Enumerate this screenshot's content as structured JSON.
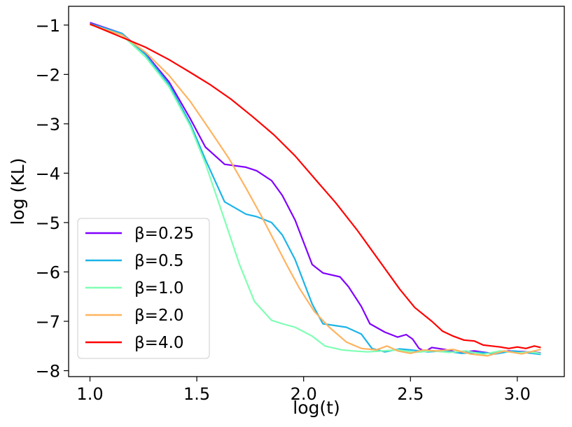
{
  "chart_data": {
    "type": "line",
    "title": "",
    "xlabel": "log(t)",
    "ylabel": "log (KL)",
    "xlim": [
      0.9,
      3.22
    ],
    "ylim": [
      -8.12,
      -0.62
    ],
    "xticks": [
      1.0,
      1.5,
      2.0,
      2.5,
      3.0
    ],
    "xtick_labels": [
      "1.0",
      "1.5",
      "2.0",
      "2.5",
      "3.0"
    ],
    "yticks": [
      -1,
      -2,
      -3,
      -4,
      -5,
      -6,
      -7,
      -8
    ],
    "ytick_labels": [
      "−1",
      "−2",
      "−3",
      "−4",
      "−5",
      "−6",
      "−7",
      "−8"
    ],
    "legend_position": "lower-left",
    "grid": false,
    "series": [
      {
        "name": "β=0.25",
        "color": "#8000ff",
        "x": [
          1.0,
          1.15,
          1.26,
          1.37,
          1.47,
          1.54,
          1.63,
          1.73,
          1.78,
          1.85,
          1.9,
          1.96,
          2.04,
          2.09,
          2.17,
          2.21,
          2.27,
          2.31,
          2.38,
          2.44,
          2.48,
          2.51,
          2.54,
          2.57,
          2.6,
          2.66,
          2.72,
          2.8,
          2.88,
          2.96,
          3.05,
          3.11
        ],
        "values": [
          -0.95,
          -1.17,
          -1.58,
          -2.15,
          -2.9,
          -3.47,
          -3.82,
          -3.88,
          -3.95,
          -4.15,
          -4.45,
          -4.95,
          -5.85,
          -6.02,
          -6.1,
          -6.3,
          -6.7,
          -7.05,
          -7.22,
          -7.32,
          -7.27,
          -7.36,
          -7.55,
          -7.61,
          -7.53,
          -7.57,
          -7.63,
          -7.6,
          -7.65,
          -7.6,
          -7.62,
          -7.64
        ]
      },
      {
        "name": "β=0.5",
        "color": "#1cb4e8",
        "x": [
          1.0,
          1.15,
          1.26,
          1.37,
          1.47,
          1.54,
          1.63,
          1.73,
          1.78,
          1.85,
          1.9,
          1.96,
          2.04,
          2.09,
          2.2,
          2.27,
          2.32,
          2.38,
          2.45,
          2.5,
          2.58,
          2.66,
          2.74,
          2.82,
          2.9,
          2.98,
          3.05,
          3.11
        ],
        "values": [
          -0.97,
          -1.17,
          -1.6,
          -2.2,
          -3.0,
          -3.72,
          -4.58,
          -4.83,
          -4.88,
          -5.0,
          -5.25,
          -5.75,
          -6.65,
          -7.05,
          -7.12,
          -7.26,
          -7.55,
          -7.62,
          -7.56,
          -7.58,
          -7.62,
          -7.6,
          -7.65,
          -7.63,
          -7.66,
          -7.6,
          -7.64,
          -7.67
        ]
      },
      {
        "name": "β=1.0",
        "color": "#80ffb4",
        "x": [
          1.0,
          1.15,
          1.26,
          1.37,
          1.47,
          1.54,
          1.63,
          1.7,
          1.77,
          1.85,
          1.9,
          1.96,
          2.04,
          2.1,
          2.18,
          2.23,
          2.3,
          2.37,
          2.44,
          2.52,
          2.6,
          2.68,
          2.76,
          2.84,
          2.92,
          3.0,
          3.05,
          3.11
        ],
        "values": [
          -0.99,
          -1.2,
          -1.65,
          -2.25,
          -3.05,
          -3.8,
          -4.95,
          -5.85,
          -6.6,
          -6.98,
          -7.05,
          -7.12,
          -7.3,
          -7.5,
          -7.58,
          -7.6,
          -7.62,
          -7.6,
          -7.58,
          -7.63,
          -7.6,
          -7.63,
          -7.6,
          -7.67,
          -7.6,
          -7.64,
          -7.62,
          -7.65
        ]
      },
      {
        "name": "β=2.0",
        "color": "#ffb360",
        "x": [
          1.0,
          1.15,
          1.26,
          1.37,
          1.47,
          1.56,
          1.65,
          1.73,
          1.8,
          1.86,
          1.92,
          1.98,
          2.05,
          2.12,
          2.2,
          2.27,
          2.34,
          2.39,
          2.44,
          2.5,
          2.56,
          2.62,
          2.7,
          2.78,
          2.86,
          2.94,
          3.02,
          3.11
        ],
        "values": [
          -0.99,
          -1.2,
          -1.55,
          -2.02,
          -2.55,
          -3.12,
          -3.7,
          -4.3,
          -4.85,
          -5.35,
          -5.85,
          -6.33,
          -6.8,
          -7.12,
          -7.42,
          -7.55,
          -7.58,
          -7.5,
          -7.6,
          -7.65,
          -7.58,
          -7.6,
          -7.57,
          -7.66,
          -7.7,
          -7.6,
          -7.66,
          -7.57
        ]
      },
      {
        "name": "β=4.0",
        "color": "#ff0000",
        "x": [
          1.0,
          1.15,
          1.26,
          1.37,
          1.47,
          1.56,
          1.66,
          1.76,
          1.86,
          1.96,
          2.05,
          2.15,
          2.25,
          2.35,
          2.45,
          2.52,
          2.6,
          2.65,
          2.7,
          2.75,
          2.8,
          2.84,
          2.88,
          2.92,
          2.96,
          3.0,
          3.04,
          3.08,
          3.11
        ],
        "values": [
          -0.98,
          -1.25,
          -1.45,
          -1.7,
          -1.96,
          -2.2,
          -2.5,
          -2.85,
          -3.22,
          -3.65,
          -4.1,
          -4.6,
          -5.15,
          -5.75,
          -6.35,
          -6.72,
          -7.0,
          -7.2,
          -7.3,
          -7.38,
          -7.4,
          -7.48,
          -7.5,
          -7.52,
          -7.55,
          -7.52,
          -7.55,
          -7.5,
          -7.53
        ]
      }
    ]
  }
}
